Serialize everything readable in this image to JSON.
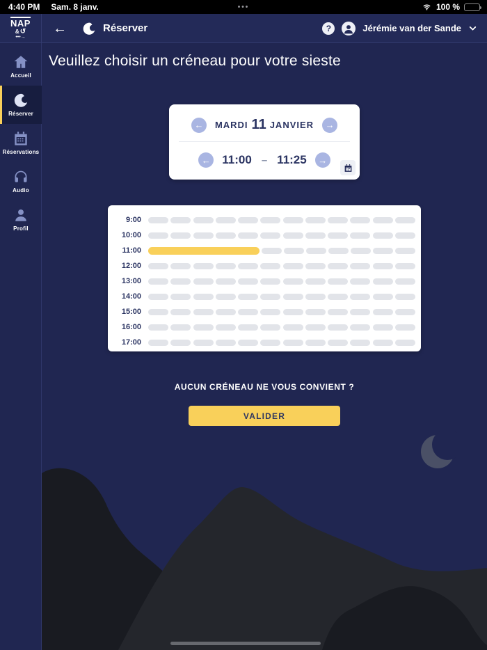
{
  "status_bar": {
    "time": "4:40 PM",
    "date": "Sam. 8 janv.",
    "multitask_dots": "•••",
    "battery_percent": "100 %"
  },
  "icons": {
    "back_arrow": "←",
    "arrow_left": "←",
    "arrow_right": "→",
    "question_mark": "?",
    "logo_uturn": "↺",
    "logo_trail": "•••→"
  },
  "header": {
    "logo_line1": "NAP",
    "logo_amp": "&",
    "title": "Réserver",
    "user": {
      "name": "Jérémie van der Sande"
    }
  },
  "sidebar": {
    "items": [
      {
        "id": "accueil",
        "label": "Accueil",
        "icon": "home-icon",
        "active": false
      },
      {
        "id": "reserver",
        "label": "Réserver",
        "icon": "nap-swirl-icon",
        "active": true
      },
      {
        "id": "reservations",
        "label": "Réservations",
        "icon": "calendar-icon",
        "active": false
      },
      {
        "id": "audio",
        "label": "Audio",
        "icon": "headphones-icon",
        "active": false
      },
      {
        "id": "profil",
        "label": "Profil",
        "icon": "person-icon",
        "active": false
      }
    ]
  },
  "main": {
    "title": "Veuillez choisir un créneau pour votre sieste",
    "date_picker": {
      "day_label": "MARDI",
      "day_number": "11",
      "month_label": "JANVIER",
      "start_time": "11:00",
      "time_separator": "–",
      "end_time": "11:25"
    },
    "schedule": {
      "row_labels": [
        "9:00",
        "10:00",
        "11:00",
        "12:00",
        "13:00",
        "14:00",
        "15:00",
        "16:00",
        "17:00"
      ],
      "slots_per_row": 12,
      "minutes_per_slot": 5,
      "selected_row_index": 2,
      "selected_start_slot": 0,
      "selected_slot_span": 5
    },
    "no_slot_prompt": "AUCUN CRÉNEAU NE VOUS CONVIENT ?",
    "validate_button": "VALIDER"
  },
  "colors": {
    "accent_yellow": "#f9d05a",
    "background_navy": "#202651",
    "sidebar_active_bg": "#171d3f",
    "slot_gray": "#e2e4e9",
    "text_navy": "#2b3462",
    "arrow_circle": "#a9b5e2",
    "moon_gray": "#4a5066",
    "mountain_dark": "#191b21",
    "mountain_light": "#24262c"
  }
}
